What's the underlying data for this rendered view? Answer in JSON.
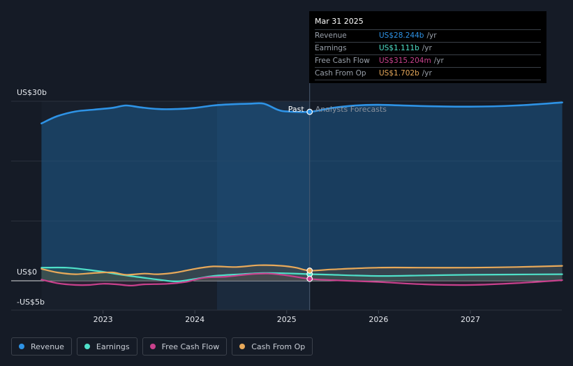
{
  "chart_data": {
    "type": "area",
    "x_ticks": [
      "2023",
      "2024",
      "2025",
      "2026",
      "2027"
    ],
    "y_ticks": [
      "US$30b",
      "US$0",
      "-US$5b"
    ],
    "ylim": [
      -5,
      30
    ],
    "divider_labels": {
      "past": "Past",
      "forecast": "Analysts Forecasts"
    },
    "series": [
      {
        "name": "Revenue",
        "color": "#2e93e6",
        "points": [
          [
            2022.33,
            26.3
          ],
          [
            2022.5,
            27.5
          ],
          [
            2022.7,
            28.3
          ],
          [
            2022.9,
            28.6
          ],
          [
            2023.1,
            28.9
          ],
          [
            2023.25,
            29.3
          ],
          [
            2023.4,
            29.0
          ],
          [
            2023.6,
            28.7
          ],
          [
            2023.8,
            28.7
          ],
          [
            2024.0,
            28.9
          ],
          [
            2024.2,
            29.3
          ],
          [
            2024.4,
            29.5
          ],
          [
            2024.6,
            29.6
          ],
          [
            2024.75,
            29.6
          ],
          [
            2024.9,
            28.6
          ],
          [
            2025.0,
            28.3
          ],
          [
            2025.25,
            28.24
          ],
          [
            2025.5,
            28.9
          ],
          [
            2025.75,
            29.3
          ],
          [
            2026.0,
            29.4
          ],
          [
            2026.5,
            29.2
          ],
          [
            2027.0,
            29.1
          ],
          [
            2027.5,
            29.3
          ],
          [
            2028.0,
            29.8
          ]
        ]
      },
      {
        "name": "Earnings",
        "color": "#4fe0c9",
        "points": [
          [
            2022.33,
            2.2
          ],
          [
            2022.6,
            2.2
          ],
          [
            2022.8,
            1.9
          ],
          [
            2023.0,
            1.5
          ],
          [
            2023.2,
            1.0
          ],
          [
            2023.4,
            0.6
          ],
          [
            2023.6,
            0.2
          ],
          [
            2023.8,
            -0.1
          ],
          [
            2024.0,
            0.3
          ],
          [
            2024.2,
            0.8
          ],
          [
            2024.5,
            1.1
          ],
          [
            2024.75,
            1.3
          ],
          [
            2025.0,
            1.25
          ],
          [
            2025.25,
            1.11
          ],
          [
            2025.5,
            1.0
          ],
          [
            2026.0,
            0.8
          ],
          [
            2026.5,
            0.9
          ],
          [
            2027.0,
            1.0
          ],
          [
            2028.0,
            1.1
          ]
        ]
      },
      {
        "name": "Free Cash Flow",
        "color": "#c9418d",
        "points": [
          [
            2022.33,
            0.2
          ],
          [
            2022.5,
            -0.4
          ],
          [
            2022.7,
            -0.7
          ],
          [
            2022.85,
            -0.7
          ],
          [
            2023.0,
            -0.5
          ],
          [
            2023.15,
            -0.6
          ],
          [
            2023.3,
            -0.8
          ],
          [
            2023.45,
            -0.6
          ],
          [
            2023.7,
            -0.5
          ],
          [
            2023.9,
            -0.2
          ],
          [
            2024.1,
            0.5
          ],
          [
            2024.35,
            0.7
          ],
          [
            2024.6,
            1.1
          ],
          [
            2024.8,
            1.2
          ],
          [
            2025.0,
            0.9
          ],
          [
            2025.25,
            0.32
          ],
          [
            2025.5,
            0.1
          ],
          [
            2026.0,
            -0.2
          ],
          [
            2026.5,
            -0.6
          ],
          [
            2027.0,
            -0.7
          ],
          [
            2027.5,
            -0.4
          ],
          [
            2028.0,
            0.1
          ]
        ]
      },
      {
        "name": "Cash From Op",
        "color": "#e8a95a",
        "points": [
          [
            2022.33,
            2.0
          ],
          [
            2022.5,
            1.4
          ],
          [
            2022.7,
            1.1
          ],
          [
            2022.9,
            1.3
          ],
          [
            2023.1,
            1.4
          ],
          [
            2023.25,
            1.0
          ],
          [
            2023.45,
            1.2
          ],
          [
            2023.6,
            1.1
          ],
          [
            2023.8,
            1.4
          ],
          [
            2024.0,
            2.0
          ],
          [
            2024.2,
            2.4
          ],
          [
            2024.45,
            2.3
          ],
          [
            2024.7,
            2.6
          ],
          [
            2024.95,
            2.5
          ],
          [
            2025.1,
            2.2
          ],
          [
            2025.25,
            1.7
          ],
          [
            2025.5,
            1.9
          ],
          [
            2026.0,
            2.2
          ],
          [
            2026.5,
            2.2
          ],
          [
            2027.0,
            2.2
          ],
          [
            2027.5,
            2.3
          ],
          [
            2028.0,
            2.5
          ]
        ]
      }
    ],
    "highlight_x": 2025.25
  },
  "tooltip": {
    "date": "Mar 31 2025",
    "rows": [
      {
        "label": "Revenue",
        "value": "US$28.244b",
        "unit": "/yr",
        "color": "#2e93e6"
      },
      {
        "label": "Earnings",
        "value": "US$1.111b",
        "unit": "/yr",
        "color": "#4fe0c9"
      },
      {
        "label": "Free Cash Flow",
        "value": "US$315.204m",
        "unit": "/yr",
        "color": "#c9418d"
      },
      {
        "label": "Cash From Op",
        "value": "US$1.702b",
        "unit": "/yr",
        "color": "#e8a95a"
      }
    ]
  },
  "legend": [
    {
      "label": "Revenue",
      "color": "#2e93e6"
    },
    {
      "label": "Earnings",
      "color": "#4fe0c9"
    },
    {
      "label": "Free Cash Flow",
      "color": "#c9418d"
    },
    {
      "label": "Cash From Op",
      "color": "#e8a95a"
    }
  ]
}
